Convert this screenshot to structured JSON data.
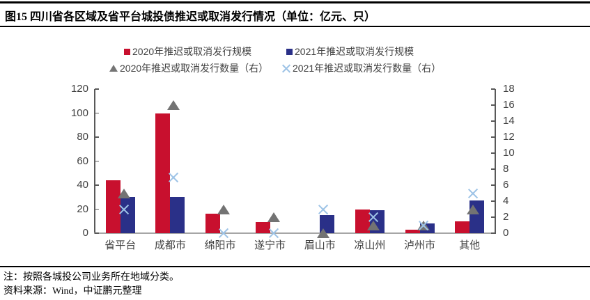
{
  "header": {
    "title": "图15 四川省各区域及省平台城投债推迟或取消发行情况（单位：亿元、只）"
  },
  "notes": {
    "note1": "注：按照各城投公司业务所在地域分类。",
    "note2": "资料来源：Wind，中证鹏元整理"
  },
  "colors": {
    "bar_2020": "#C8102E",
    "bar_2021": "#2A3088",
    "marker_2020": "#737373",
    "marker_2021": "#9DC3E6",
    "axis_line": "#595959",
    "baseline": "#A6A6A6",
    "text": "#404040"
  },
  "chart_data": {
    "type": "bar",
    "title": "四川省各区域及省平台城投债推迟或取消发行情况",
    "units": "亿元、只",
    "categories": [
      "省平台",
      "成都市",
      "绵阳市",
      "遂宁市",
      "眉山市",
      "凉山州",
      "泸州市",
      "其他"
    ],
    "series": [
      {
        "name": "2020年推迟或取消发行规模",
        "type": "bar",
        "axis": "left",
        "color": "#C8102E",
        "values": [
          44,
          99.5,
          16,
          9,
          0,
          20,
          3,
          10
        ]
      },
      {
        "name": "2021年推迟或取消发行规模",
        "type": "bar",
        "axis": "left",
        "color": "#2A3088",
        "values": [
          30,
          30,
          0,
          0,
          15,
          19,
          8,
          27
        ]
      },
      {
        "name": "2020年推迟或取消发行数量（右）",
        "type": "scatter",
        "marker": "triangle",
        "axis": "right",
        "color": "#737373",
        "values": [
          5,
          16,
          3,
          2,
          0,
          1,
          1,
          3
        ]
      },
      {
        "name": "2021年推迟或取消发行数量（右）",
        "type": "scatter",
        "marker": "x",
        "axis": "right",
        "color": "#9DC3E6",
        "values": [
          3,
          7,
          0,
          0,
          3,
          2,
          1,
          5
        ]
      }
    ],
    "left_axis": {
      "ticks": [
        0,
        20,
        40,
        60,
        80,
        100,
        120
      ],
      "min": 0,
      "max": 120
    },
    "right_axis": {
      "ticks": [
        0,
        2,
        4,
        6,
        8,
        10,
        12,
        14,
        16,
        18
      ],
      "min": 0,
      "max": 18
    },
    "grid": false,
    "legend_position": "top"
  }
}
